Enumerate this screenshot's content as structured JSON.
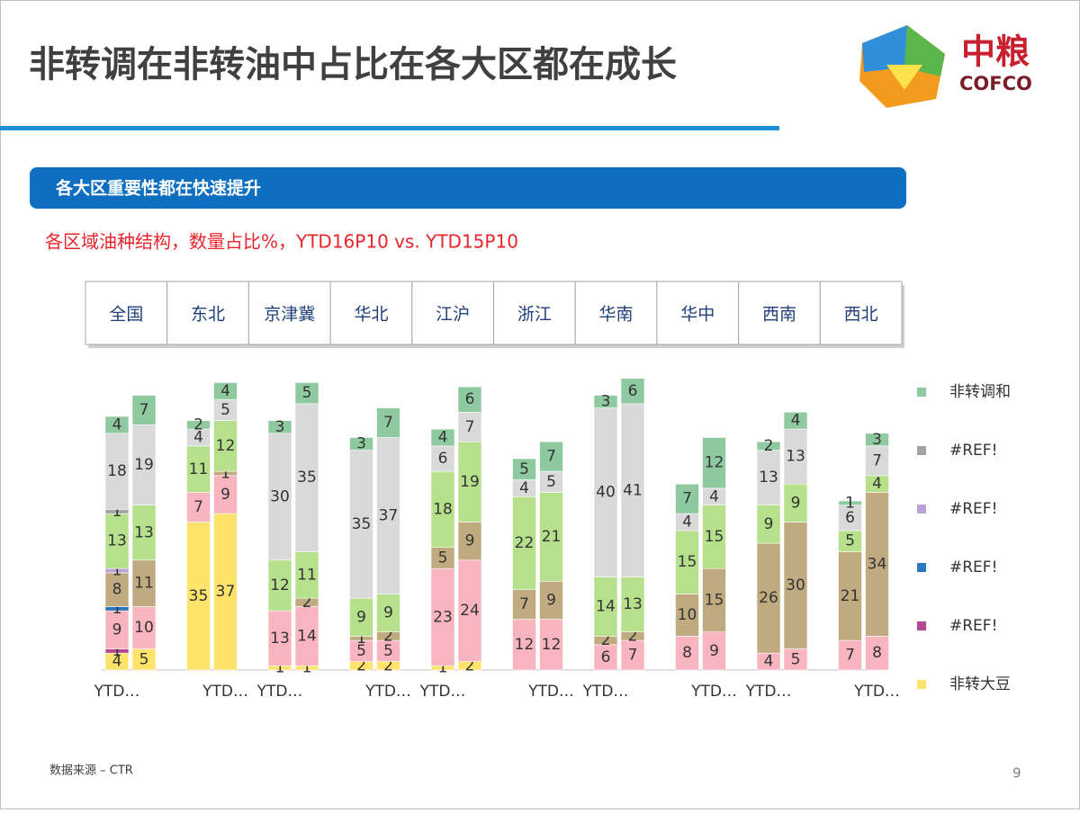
{
  "header": {
    "title": "非转调在非转油中占比在各大区都在成长",
    "logo": {
      "cn": "中粮",
      "en": "COFCO"
    }
  },
  "banner": "各大区重要性都在快速提升",
  "subtitle": "各区域油种结构，数量占比%，YTD16P10 vs. YTD15P10",
  "regions": [
    "全国",
    "东北",
    "京津冀",
    "华北",
    "江沪",
    "浙江",
    "华南",
    "华中",
    "西南",
    "西北"
  ],
  "chart_data": {
    "type": "stacked_bar",
    "categories": [
      "YTD…",
      null,
      null,
      "YTD…",
      "YTD…",
      null,
      null,
      "YTD…",
      "YTD…",
      null,
      null,
      "YTD…",
      "YTD…",
      null,
      null,
      "YTD…",
      "YTD…",
      null,
      null,
      "YTD…"
    ],
    "ylim": [
      0,
      70
    ],
    "series": [
      {
        "name": "非转大豆",
        "color": "#fde36b",
        "values": [
          4,
          5,
          35,
          37,
          1,
          1,
          2,
          2,
          1,
          2,
          0,
          0,
          0,
          0,
          0,
          0,
          0,
          0,
          0,
          0
        ]
      },
      {
        "name": "#REF!",
        "color": "#b5488e",
        "values": [
          1,
          null,
          null,
          null,
          null,
          null,
          null,
          null,
          null,
          null,
          null,
          null,
          null,
          null,
          null,
          null,
          null,
          null,
          null,
          null
        ]
      },
      {
        "color": "#f9b5bf",
        "values": [
          9,
          10,
          7,
          9,
          13,
          14,
          5,
          5,
          23,
          24,
          12,
          12,
          6,
          7,
          8,
          9,
          4,
          5,
          7,
          8
        ]
      },
      {
        "name": "#REF!",
        "color": "#2e78c2",
        "values": [
          1,
          null,
          null,
          null,
          null,
          null,
          null,
          null,
          null,
          null,
          null,
          null,
          null,
          null,
          null,
          null,
          null,
          null,
          null,
          null
        ]
      },
      {
        "color": "#c0aa80",
        "values": [
          8,
          11,
          0,
          1,
          null,
          2,
          1,
          2,
          5,
          9,
          7,
          9,
          2,
          2,
          10,
          15,
          26,
          30,
          21,
          34
        ]
      },
      {
        "name": "#REF!",
        "color": "#b8a2d6",
        "values": [
          1,
          null,
          null,
          null,
          null,
          null,
          null,
          null,
          null,
          null,
          null,
          null,
          null,
          null,
          null,
          null,
          null,
          null,
          null,
          null
        ]
      },
      {
        "color": "#b6e08c",
        "values": [
          13,
          13,
          11,
          12,
          12,
          11,
          9,
          9,
          18,
          19,
          22,
          21,
          14,
          13,
          15,
          15,
          9,
          9,
          5,
          4
        ]
      },
      {
        "name": "#REF!",
        "color": "#a3a3a3",
        "values": [
          1,
          null,
          null,
          null,
          null,
          null,
          null,
          null,
          null,
          null,
          null,
          null,
          null,
          null,
          null,
          null,
          null,
          null,
          null,
          null
        ]
      },
      {
        "color": "#d9d9d9",
        "values": [
          18,
          19,
          4,
          5,
          30,
          35,
          35,
          37,
          6,
          7,
          4,
          5,
          40,
          41,
          4,
          4,
          13,
          13,
          6,
          7
        ]
      },
      {
        "name": "非转调和",
        "color": "#8fc9a0",
        "values": [
          4,
          7,
          2,
          4,
          3,
          5,
          3,
          7,
          4,
          6,
          5,
          7,
          3,
          6,
          7,
          12,
          2,
          4,
          1,
          3
        ]
      }
    ]
  },
  "footer": {
    "source": "数据来源 – CTR",
    "page": 9
  }
}
